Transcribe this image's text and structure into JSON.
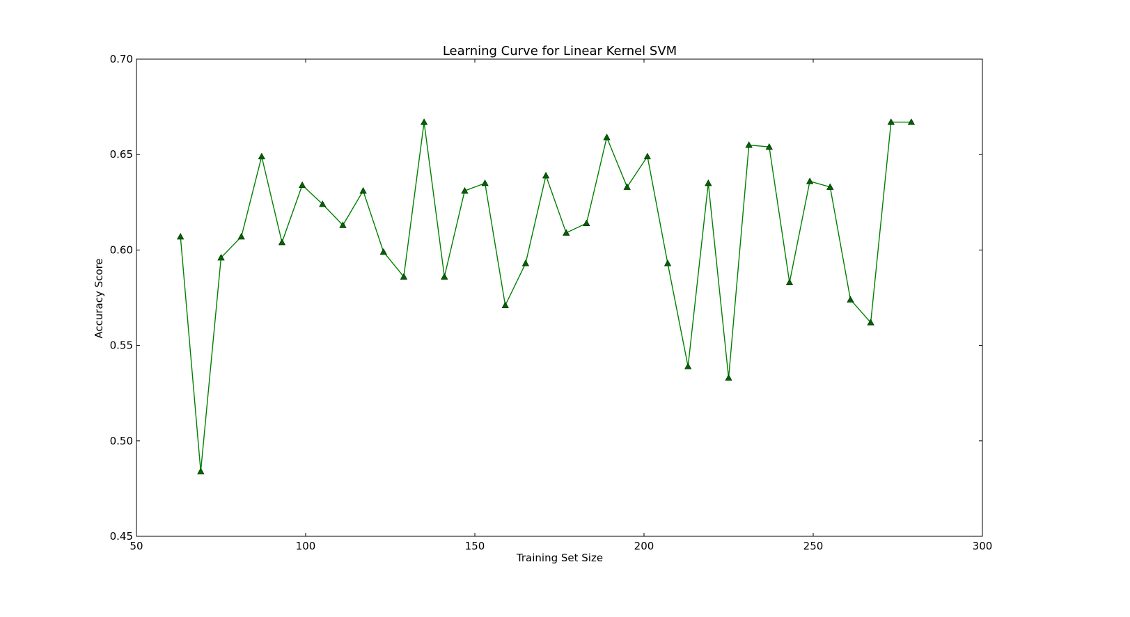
{
  "colors": {
    "line": "#008000",
    "marker_fill": "#006400",
    "marker_edge": "#003300",
    "frame": "#000000"
  },
  "chart_data": {
    "type": "line",
    "title": "Learning Curve for Linear Kernel SVM",
    "xlabel": "Training Set Size",
    "ylabel": "Accuracy Score",
    "xlim": [
      50,
      300
    ],
    "ylim": [
      0.45,
      0.7
    ],
    "xticks": [
      "50",
      "100",
      "150",
      "200",
      "250",
      "300"
    ],
    "yticks": [
      "0.45",
      "0.50",
      "0.55",
      "0.60",
      "0.65",
      "0.70"
    ],
    "grid": false,
    "marker": "triangle",
    "series": [
      {
        "x": [
          63,
          69,
          75,
          81,
          87,
          93,
          99,
          105,
          111,
          117,
          123,
          129,
          135,
          141,
          147,
          153,
          159,
          165,
          171,
          177,
          183,
          189,
          195,
          201,
          207,
          213,
          219,
          225,
          231,
          237,
          243,
          249,
          255,
          261,
          267,
          273,
          279
        ],
        "values": [
          0.607,
          0.484,
          0.596,
          0.607,
          0.649,
          0.604,
          0.634,
          0.624,
          0.613,
          0.631,
          0.599,
          0.586,
          0.667,
          0.586,
          0.631,
          0.635,
          0.571,
          0.593,
          0.639,
          0.609,
          0.614,
          0.659,
          0.633,
          0.649,
          0.593,
          0.539,
          0.635,
          0.533,
          0.655,
          0.654,
          0.583,
          0.636,
          0.633,
          0.574,
          0.562,
          0.667,
          0.667
        ]
      }
    ]
  }
}
